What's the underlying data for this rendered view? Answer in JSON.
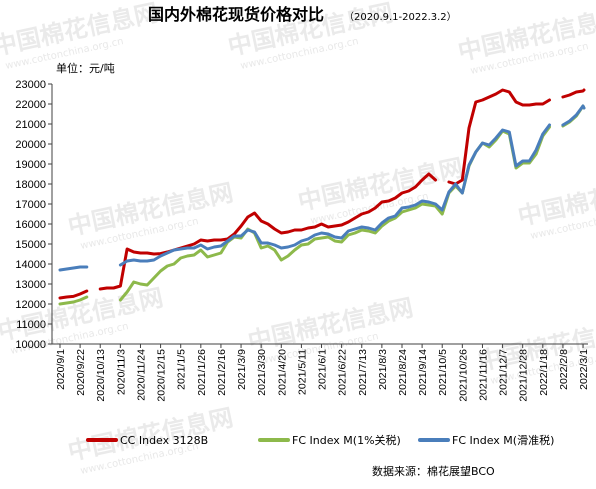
{
  "chart_data": {
    "type": "line",
    "title": "国内外棉花现货价格对比",
    "subtitle": "（2020.9.1-2022.3.2）",
    "ylabel": "单位：元/吨",
    "ylim": [
      10000,
      23000
    ],
    "yticks": [
      10000,
      11000,
      12000,
      13000,
      14000,
      15000,
      16000,
      17000,
      18000,
      19000,
      20000,
      21000,
      22000,
      23000
    ],
    "grid": false,
    "legend_position": "bottom",
    "x_tick_labels": [
      "2020/9/1",
      "2020/9/22",
      "2020/10/13",
      "2020/11/3",
      "2020/11/24",
      "2020/12/15",
      "2021/1/5",
      "2021/1/26",
      "2021/2/16",
      "2021/3/9",
      "2021/3/30",
      "2021/4/20",
      "2021/5/11",
      "2021/6/1",
      "2021/6/22",
      "2021/7/13",
      "2021/8/3",
      "2021/8/24",
      "2021/9/14",
      "2021/10/5",
      "2021/10/26",
      "2021/11/16",
      "2021/12/7",
      "2021/12/28",
      "2022/1/18",
      "2022/2/8",
      "2022/3/1"
    ],
    "x": [
      "2020/9/1",
      "2020/9/8",
      "2020/9/15",
      "2020/9/22",
      "2020/9/29",
      "2020/10/6",
      "2020/10/13",
      "2020/10/20",
      "2020/10/27",
      "2020/11/3",
      "2020/11/10",
      "2020/11/17",
      "2020/11/24",
      "2020/12/1",
      "2020/12/8",
      "2020/12/15",
      "2020/12/22",
      "2020/12/29",
      "2021/1/5",
      "2021/1/12",
      "2021/1/19",
      "2021/1/26",
      "2021/2/2",
      "2021/2/9",
      "2021/2/16",
      "2021/2/23",
      "2021/3/2",
      "2021/3/9",
      "2021/3/16",
      "2021/3/23",
      "2021/3/30",
      "2021/4/6",
      "2021/4/13",
      "2021/4/20",
      "2021/4/27",
      "2021/5/4",
      "2021/5/11",
      "2021/5/18",
      "2021/5/25",
      "2021/6/1",
      "2021/6/8",
      "2021/6/15",
      "2021/6/22",
      "2021/6/29",
      "2021/7/6",
      "2021/7/13",
      "2021/7/20",
      "2021/7/27",
      "2021/8/3",
      "2021/8/10",
      "2021/8/17",
      "2021/8/24",
      "2021/8/31",
      "2021/9/7",
      "2021/9/14",
      "2021/9/21",
      "2021/9/28",
      "2021/10/5",
      "2021/10/12",
      "2021/10/19",
      "2021/10/26",
      "2021/11/2",
      "2021/11/9",
      "2021/11/16",
      "2021/11/23",
      "2021/11/30",
      "2021/12/7",
      "2021/12/14",
      "2021/12/21",
      "2021/12/28",
      "2022/1/4",
      "2022/1/11",
      "2022/1/18",
      "2022/1/25",
      "2022/2/1",
      "2022/2/8",
      "2022/2/15",
      "2022/2/22",
      "2022/3/1",
      "2022/3/2"
    ],
    "series": [
      {
        "name": "CC Index 3128B",
        "color": "#c00000",
        "values": [
          12300,
          12350,
          12380,
          12500,
          12650,
          null,
          12750,
          12800,
          12800,
          12900,
          14750,
          14600,
          14550,
          14550,
          14500,
          14520,
          14600,
          14700,
          14800,
          14900,
          15000,
          15200,
          15150,
          15200,
          15200,
          15250,
          15500,
          15900,
          16350,
          16550,
          16150,
          16000,
          15750,
          15550,
          15600,
          15700,
          15700,
          15800,
          15850,
          16000,
          15850,
          15900,
          15950,
          16100,
          16300,
          16500,
          16600,
          16800,
          17100,
          17150,
          17300,
          17550,
          17650,
          17850,
          18200,
          18500,
          18200,
          null,
          18100,
          18000,
          18200,
          20800,
          22100,
          22200,
          22350,
          22500,
          22700,
          22600,
          22100,
          21950,
          21950,
          22000,
          22000,
          22200,
          null,
          22350,
          22450,
          22600,
          22650,
          22700
        ]
      },
      {
        "name": "FC Index M(1%关税)",
        "color": "#8db94b",
        "values": [
          12000,
          12050,
          12100,
          12200,
          12350,
          null,
          12200,
          null,
          null,
          12200,
          12600,
          13100,
          13000,
          12950,
          13300,
          13650,
          13900,
          14000,
          14300,
          14400,
          14450,
          14700,
          14350,
          14450,
          14550,
          15100,
          15350,
          15300,
          15750,
          15550,
          14800,
          14900,
          14700,
          14200,
          14400,
          14700,
          14950,
          15000,
          15250,
          15300,
          15350,
          15150,
          15100,
          15450,
          15550,
          15700,
          15650,
          15550,
          15900,
          16150,
          16300,
          16600,
          16700,
          16800,
          17000,
          16950,
          16900,
          16500,
          17550,
          17900,
          17550,
          18900,
          19600,
          20050,
          19850,
          20200,
          20650,
          20500,
          18800,
          19050,
          19050,
          19500,
          20400,
          20850,
          null,
          20900,
          21100,
          21400,
          21900,
          21800
        ]
      },
      {
        "name": "FC Index M(滑准税)",
        "color": "#4a7ebb",
        "values": [
          13700,
          13750,
          13800,
          13850,
          13850,
          null,
          13900,
          null,
          null,
          13950,
          14150,
          14200,
          14150,
          14150,
          14200,
          14400,
          14550,
          14700,
          14750,
          14800,
          14800,
          14950,
          14750,
          14850,
          14900,
          15150,
          15400,
          15400,
          15700,
          15600,
          15050,
          15050,
          14950,
          14800,
          14850,
          14950,
          15150,
          15250,
          15450,
          15550,
          15500,
          15350,
          15300,
          15650,
          15750,
          15850,
          15800,
          15700,
          16050,
          16300,
          16400,
          16800,
          16850,
          16950,
          17150,
          17100,
          17000,
          16700,
          17600,
          18000,
          17550,
          18950,
          19600,
          20050,
          19950,
          20300,
          20700,
          20600,
          18900,
          19150,
          19150,
          19700,
          20500,
          20950,
          null,
          20950,
          21150,
          21450,
          21900,
          21800
        ]
      }
    ]
  },
  "source_note": "数据来源：棉花展望BCO",
  "watermark": {
    "main": "中国棉花信息网",
    "url": "www.cottonchina.org.cn",
    "color": "#d9d9d9"
  },
  "colors": {
    "axis": "#404040",
    "text": "#000000"
  }
}
